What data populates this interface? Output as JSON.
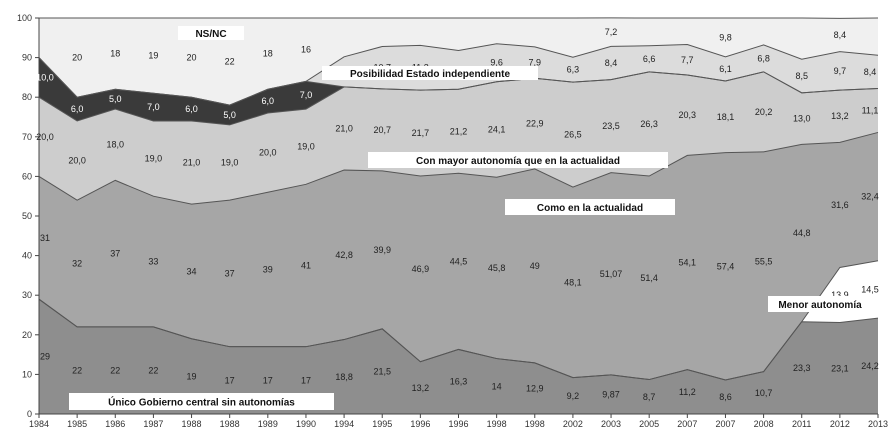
{
  "chart_data": {
    "type": "area",
    "stacked": true,
    "x": [
      "1984",
      "1985",
      "1986",
      "1987",
      "1988",
      "1988",
      "1989",
      "1990",
      "1994",
      "1995",
      "1996",
      "1996",
      "1998",
      "1998",
      "2002",
      "2003",
      "2005",
      "2007",
      "2007",
      "2008",
      "2011",
      "2012",
      "2013"
    ],
    "ylim": [
      0,
      100
    ],
    "yticks": [
      0,
      10,
      20,
      30,
      40,
      50,
      60,
      70,
      80,
      90,
      100
    ],
    "grid": false,
    "series": [
      {
        "name": "Único Gobierno central sin autonomías",
        "color": "#8e8e8e",
        "values": [
          29,
          22,
          22,
          22,
          19,
          17,
          17,
          17,
          18.8,
          21.5,
          13.2,
          16.3,
          14,
          12.9,
          9.2,
          9.87,
          8.7,
          11.2,
          8.6,
          10.7,
          23.3,
          23.1,
          24.2
        ],
        "labels": [
          "29",
          "22",
          "22",
          "22",
          "19",
          "17",
          "17",
          "17",
          "18,8",
          "21,5",
          "13,2",
          "16,3",
          "14",
          "12,9",
          "9,2",
          "9,87",
          "8,7",
          "11,2",
          "8,6",
          "10,7",
          "23,3",
          "23,1",
          "24,2"
        ]
      },
      {
        "name": "Menor autonomía",
        "color": "#ffffff",
        "values": [
          0,
          0,
          0,
          0,
          0,
          0,
          0,
          0,
          0,
          0,
          0,
          0,
          0,
          0,
          0,
          0,
          0,
          0,
          0,
          0,
          0,
          13.9,
          14.5
        ],
        "labels": [
          "",
          "",
          "",
          "",
          "",
          "",
          "",
          "",
          "",
          "",
          "",
          "",
          "",
          "",
          "",
          "",
          "",
          "",
          "",
          "",
          "",
          "13,9",
          "14,5"
        ]
      },
      {
        "name": "Como en la actualidad",
        "color": "#a6a6a6",
        "values": [
          31,
          32,
          37,
          33,
          34,
          37,
          39,
          41,
          42.8,
          39.9,
          46.9,
          44.5,
          45.8,
          49,
          48.1,
          51.07,
          51.4,
          54.1,
          57.4,
          55.5,
          44.8,
          31.6,
          32.4
        ],
        "labels": [
          "31",
          "32",
          "37",
          "33",
          "34",
          "37",
          "39",
          "41",
          "42,8",
          "39,9",
          "46,9",
          "44,5",
          "45,8",
          "49",
          "48,1",
          "51,07",
          "51,4",
          "54,1",
          "57,4",
          "55,5",
          "44,8",
          "31,6",
          "32,4"
        ]
      },
      {
        "name": "Con mayor autonomía que en la actualidad",
        "color": "#cdcdcd",
        "values": [
          20,
          20,
          18,
          19,
          21,
          19,
          20,
          19,
          21,
          20.7,
          21.7,
          21.2,
          24.1,
          22.9,
          26.5,
          23.5,
          26.3,
          20.3,
          18.1,
          20.2,
          13,
          13.2,
          11.1
        ],
        "labels": [
          "20,0",
          "20,0",
          "18,0",
          "19,0",
          "21,0",
          "19,0",
          "20,0",
          "19,0",
          "21,0",
          "20,7",
          "21,7",
          "21,2",
          "24,1",
          "22,9",
          "26,5",
          "23,5",
          "26,3",
          "20,3",
          "18,1",
          "20,2",
          "13,0",
          "13,2",
          "11,1"
        ]
      },
      {
        "name": "Posibilidad Estado independiente",
        "color": "#3a3a3a",
        "values": [
          10,
          6,
          5,
          7,
          6,
          5,
          6,
          7,
          0,
          0,
          0,
          0,
          0,
          0,
          0,
          0,
          0,
          0,
          0,
          0,
          0,
          0,
          0
        ],
        "labels": [
          "10,0",
          "6,0",
          "5,0",
          "7,0",
          "6,0",
          "5,0",
          "6,0",
          "7,0",
          "",
          "",
          "",
          "",
          "",
          "",
          "",
          "",
          "",
          "",
          "",
          "",
          "",
          "",
          ""
        ]
      },
      {
        "name": "Posibilidad Estado independiente (b)",
        "color": "#dcdcdc",
        "values": [
          0,
          0,
          0,
          0,
          0,
          0,
          0,
          0,
          7.6,
          10.7,
          11.3,
          9.8,
          9.6,
          7.9,
          6.3,
          8.4,
          6.6,
          7.7,
          6.1,
          6.8,
          8.5,
          9.7,
          8.4
        ],
        "labels": [
          "",
          "",
          "",
          "",
          "",
          "",
          "",
          "",
          "7,6",
          "10,7",
          "11,3",
          "9,8",
          "9,6",
          "7,9",
          "6,3",
          "8,4",
          "6,6",
          "7,7",
          "6,1",
          "6,8",
          "8,5",
          "9,7",
          "8,4"
        ]
      },
      {
        "name": "NS/NC",
        "color": "#f0f0f0",
        "values": [
          10,
          20,
          18,
          19,
          20,
          22,
          18,
          16,
          9.8,
          7.2,
          6.9,
          8.2,
          6.5,
          7.3,
          9.9,
          7.2,
          7,
          6.7,
          9.8,
          6.8,
          10.4,
          8.4,
          9.4
        ],
        "labels": [
          "",
          "20",
          "18",
          "19",
          "20",
          "22",
          "18",
          "16",
          "",
          "",
          "",
          "",
          "",
          "",
          "",
          "7,2",
          "",
          "",
          "9,8",
          "",
          "",
          "8,4",
          ""
        ]
      }
    ],
    "band_labels": [
      {
        "text": "NS/NC",
        "color": "#ffffff"
      },
      {
        "text": "Posibilidad Estado independiente",
        "color": "#ffffff"
      },
      {
        "text": "Con mayor autonomía que en la actualidad",
        "color": "#ffffff"
      },
      {
        "text": "Como en la actualidad",
        "color": "#ffffff"
      },
      {
        "text": "Menor autonomía",
        "color": "#ffffff"
      },
      {
        "text": "Único Gobierno central sin autonomías",
        "color": "#ffffff"
      }
    ]
  }
}
